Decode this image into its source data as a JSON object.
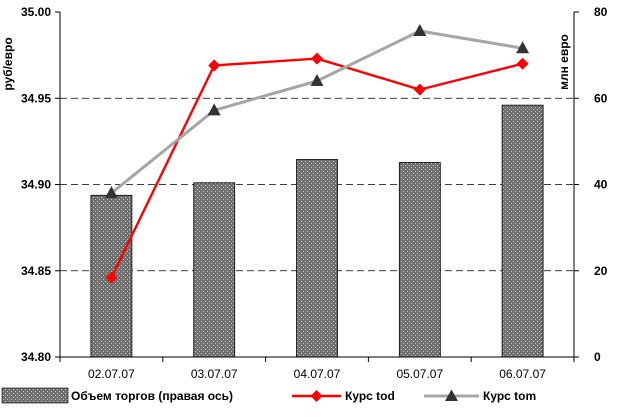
{
  "chart_data": {
    "type": "bar",
    "categories": [
      "02.07.07",
      "03.07.07",
      "04.07.07",
      "05.07.07",
      "06.07.07"
    ],
    "y_left": {
      "label": "руб/евро",
      "min": 34.8,
      "max": 35.0,
      "ticks": [
        "34.80",
        "34.85",
        "34.90",
        "34.95",
        "35.00"
      ],
      "tick_values": [
        34.8,
        34.85,
        34.9,
        34.95,
        35.0
      ]
    },
    "y_right": {
      "label": "млн евро",
      "min": 0,
      "max": 80,
      "ticks": [
        "0",
        "20",
        "40",
        "60",
        "80"
      ],
      "tick_values": [
        0,
        20,
        40,
        60,
        80
      ]
    },
    "series": [
      {
        "name": "Объем торгов (правая ось)",
        "kind": "bar",
        "axis": "right",
        "color": "#808080",
        "values": [
          37.5,
          40.4,
          45.8,
          45.1,
          58.4
        ]
      },
      {
        "name": "Курс tod",
        "kind": "line",
        "axis": "left",
        "color": "#ff0000",
        "marker": "diamond",
        "values": [
          34.846,
          34.969,
          34.973,
          34.955,
          34.97
        ]
      },
      {
        "name": "Курс tom",
        "kind": "line",
        "axis": "left",
        "color": "#a6a6a6",
        "marker": "triangle",
        "values": [
          34.895,
          34.943,
          34.96,
          34.989,
          34.979
        ]
      }
    ],
    "grid": "horizontal-dashed",
    "legend_position": "bottom"
  }
}
